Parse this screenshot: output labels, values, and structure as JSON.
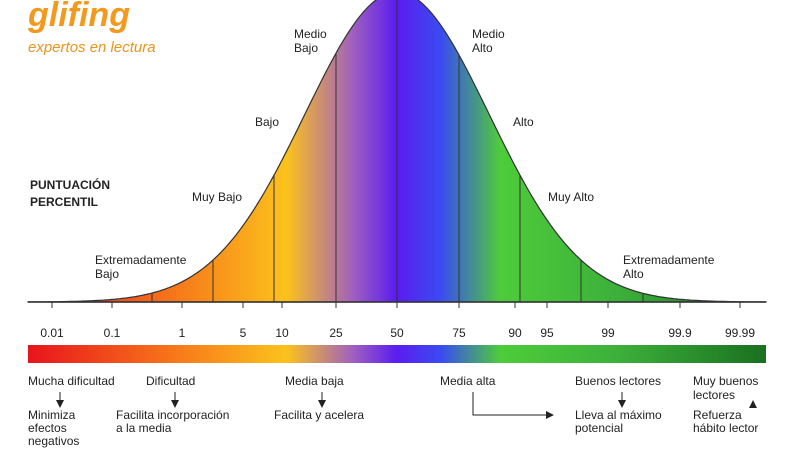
{
  "logo": {
    "name": "glifing",
    "tagline": "expertos en lectura"
  },
  "axis_title": [
    "PUNTUACIÓN",
    "PERCENTIL"
  ],
  "bands": [
    [
      "Extremadamente",
      "Bajo"
    ],
    [
      "Muy Bajo"
    ],
    [
      "Bajo"
    ],
    [
      "Medio",
      "Bajo"
    ],
    [
      "Medio",
      "Alto"
    ],
    [
      "Alto"
    ],
    [
      "Muy Alto"
    ],
    [
      "Extremadamente",
      "Alto"
    ]
  ],
  "percentiles": [
    "0.01",
    "0.1",
    "1",
    "5",
    "10",
    "25",
    "50",
    "75",
    "90",
    "95",
    "99",
    "99.9",
    "99.99"
  ],
  "groups": [
    {
      "level": [
        "Mucha dificultad"
      ],
      "action": [
        "Minimiza",
        "efectos",
        "negativos"
      ]
    },
    {
      "level": [
        "Dificultad"
      ],
      "action": [
        "Facilita incorporación",
        "a la media"
      ]
    },
    {
      "level": [
        "Media baja"
      ],
      "action": [
        "Facilita y acelera"
      ]
    },
    {
      "level": [
        "Media alta"
      ],
      "action": []
    },
    {
      "level": [
        "Buenos lectores"
      ],
      "action": [
        "Lleva al máximo",
        "potencial"
      ]
    },
    {
      "level": [
        "Muy buenos",
        "lectores"
      ],
      "action": [
        "Refuerza",
        "hábito lector"
      ]
    }
  ]
}
